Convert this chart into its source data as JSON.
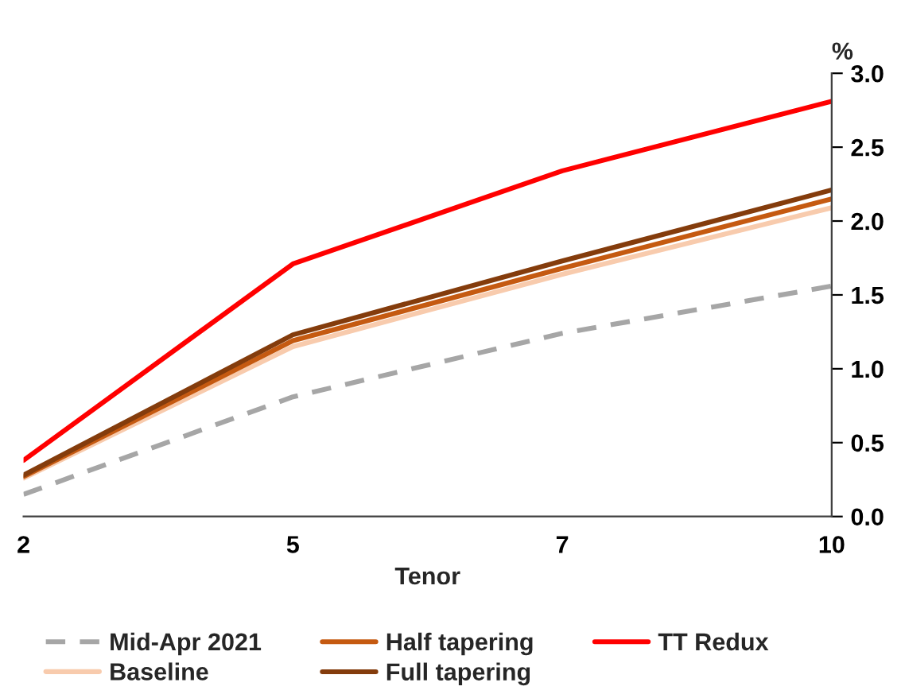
{
  "chart_data": {
    "type": "line",
    "xlabel": "Tenor",
    "ylabel": "%",
    "categories": [
      "2",
      "5",
      "7",
      "10"
    ],
    "series": [
      {
        "name": "Mid-Apr 2021",
        "color": "#a6a6a6",
        "line_style": "dashed",
        "values": [
          0.15,
          0.81,
          1.24,
          1.56
        ]
      },
      {
        "name": "Baseline",
        "color": "#f8cbad",
        "values": [
          0.26,
          1.15,
          1.64,
          2.09
        ]
      },
      {
        "name": "Half tapering",
        "color": "#c55a11",
        "values": [
          0.27,
          1.19,
          1.68,
          2.15
        ]
      },
      {
        "name": "Full tapering",
        "color": "#843c0c",
        "values": [
          0.28,
          1.23,
          1.73,
          2.21
        ]
      },
      {
        "name": "TT Redux",
        "color": "#ff0000",
        "values": [
          0.38,
          1.71,
          2.34,
          2.81
        ]
      }
    ],
    "ylim": [
      0,
      3
    ],
    "yticks": [
      {
        "value": 0,
        "label": "0.0"
      },
      0.5,
      {
        "value": 1,
        "label": "1.0"
      },
      1.5,
      {
        "value": 2,
        "label": "2.0"
      },
      2.5,
      {
        "value": 3,
        "label": "3.0"
      }
    ],
    "grid": false,
    "legend": "bottom",
    "line_style": "solid"
  }
}
